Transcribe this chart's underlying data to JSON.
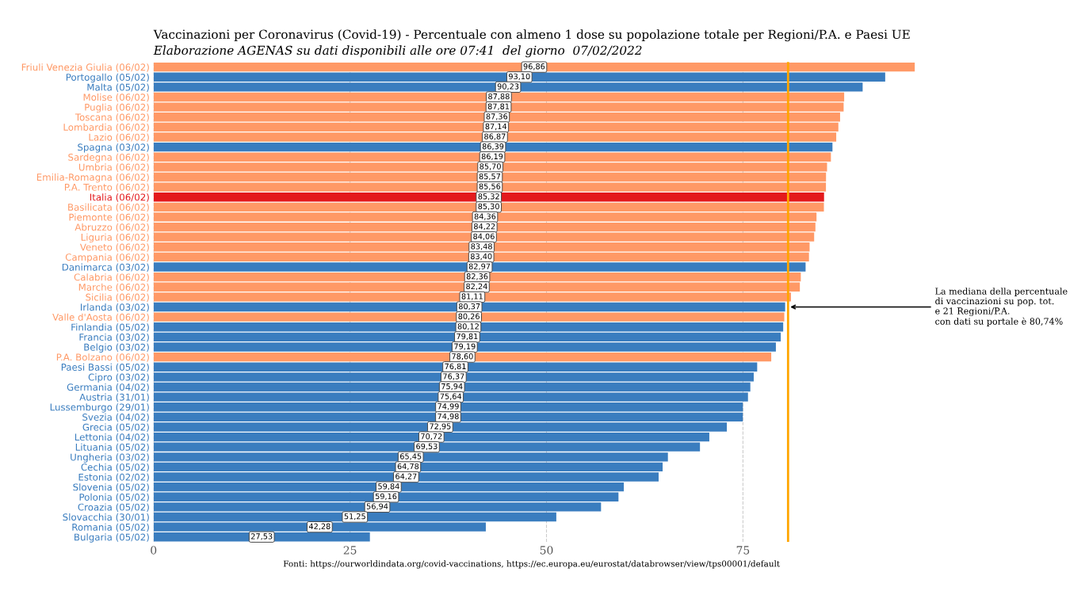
{
  "chart_data": {
    "type": "bar",
    "orientation": "horizontal",
    "title": "Vaccinazioni per Coronavirus (Covid-19) - Percentuale con almeno 1 dose su popolazione totale per Regioni/P.A. e Paesi UE",
    "subtitle": "Elaborazione AGENAS su dati disponibili alle ore 07:41  del giorno  07/02/2022",
    "categories": [
      "Friuli Venezia Giulia (06/02)",
      "Portogallo (05/02)",
      "Malta (05/02)",
      "Molise (06/02)",
      "Puglia (06/02)",
      "Toscana (06/02)",
      "Lombardia (06/02)",
      "Lazio (06/02)",
      "Spagna (03/02)",
      "Sardegna (06/02)",
      "Umbria (06/02)",
      "Emilia-Romagna (06/02)",
      "P.A. Trento (06/02)",
      "Italia (06/02)",
      "Basilicata (06/02)",
      "Piemonte (06/02)",
      "Abruzzo (06/02)",
      "Liguria (06/02)",
      "Veneto (06/02)",
      "Campania (06/02)",
      "Danimarca (03/02)",
      "Calabria (06/02)",
      "Marche (06/02)",
      "Sicilia (06/02)",
      "Irlanda (03/02)",
      "Valle d'Aosta (06/02)",
      "Finlandia (05/02)",
      "Francia (03/02)",
      "Belgio (03/02)",
      "P.A. Bolzano (06/02)",
      "Paesi Bassi (05/02)",
      "Cipro (03/02)",
      "Germania (04/02)",
      "Austria (31/01)",
      "Lussemburgo (29/01)",
      "Svezia (04/02)",
      "Grecia (05/02)",
      "Lettonia (04/02)",
      "Lituania (05/02)",
      "Ungheria (03/02)",
      "Cechia (05/02)",
      "Estonia (02/02)",
      "Slovenia (05/02)",
      "Polonia (05/02)",
      "Croazia (05/02)",
      "Slovacchia (30/01)",
      "Romania (05/02)",
      "Bulgaria (05/02)"
    ],
    "values": [
      96.86,
      93.1,
      90.23,
      87.88,
      87.81,
      87.36,
      87.14,
      86.87,
      86.39,
      86.19,
      85.7,
      85.57,
      85.56,
      85.32,
      85.3,
      84.36,
      84.22,
      84.06,
      83.48,
      83.4,
      82.97,
      82.36,
      82.24,
      81.11,
      80.37,
      80.26,
      80.12,
      79.81,
      79.19,
      78.6,
      76.81,
      76.37,
      75.94,
      75.64,
      74.99,
      74.98,
      72.95,
      70.72,
      69.53,
      65.45,
      64.78,
      64.27,
      59.84,
      59.16,
      56.94,
      51.25,
      42.28,
      27.53
    ],
    "value_labels": [
      "96,86",
      "93,10",
      "90,23",
      "87,88",
      "87,81",
      "87,36",
      "87,14",
      "86,87",
      "86,39",
      "86,19",
      "85,70",
      "85,57",
      "85,56",
      "85,32",
      "85,30",
      "84,36",
      "84,22",
      "84,06",
      "83,48",
      "83,40",
      "82,97",
      "82,36",
      "82,24",
      "81,11",
      "80,37",
      "80,26",
      "80,12",
      "79,81",
      "79,19",
      "78,60",
      "76,81",
      "76,37",
      "75,94",
      "75,64",
      "74,99",
      "74,98",
      "72,95",
      "70,72",
      "69,53",
      "65,45",
      "64,78",
      "64,27",
      "59,84",
      "59,16",
      "56,94",
      "51,25",
      "42,28",
      "27,53"
    ],
    "colors": [
      "#ff9966",
      "#3a7dbf",
      "#3a7dbf",
      "#ff9966",
      "#ff9966",
      "#ff9966",
      "#ff9966",
      "#ff9966",
      "#3a7dbf",
      "#ff9966",
      "#ff9966",
      "#ff9966",
      "#ff9966",
      "#e31a1c",
      "#ff9966",
      "#ff9966",
      "#ff9966",
      "#ff9966",
      "#ff9966",
      "#ff9966",
      "#3a7dbf",
      "#ff9966",
      "#ff9966",
      "#ff9966",
      "#3a7dbf",
      "#ff9966",
      "#3a7dbf",
      "#3a7dbf",
      "#3a7dbf",
      "#ff9966",
      "#3a7dbf",
      "#3a7dbf",
      "#3a7dbf",
      "#3a7dbf",
      "#3a7dbf",
      "#3a7dbf",
      "#3a7dbf",
      "#3a7dbf",
      "#3a7dbf",
      "#3a7dbf",
      "#3a7dbf",
      "#3a7dbf",
      "#3a7dbf",
      "#3a7dbf",
      "#3a7dbf",
      "#3a7dbf",
      "#3a7dbf",
      "#3a7dbf"
    ],
    "xlim": [
      0,
      97
    ],
    "xticks": [
      0,
      25,
      50,
      75
    ],
    "grid": "x",
    "ref_lines": [
      {
        "axis": "x",
        "value": 80.74,
        "color": "#ffa500",
        "label": "La mediana della percentuale\ndi vaccinazioni su pop. tot.\ne 21 Regioni/P.A.\ncon dati su portale è 80,74%"
      }
    ],
    "annotations": [
      "Fonti: https://ourworldindata.org/covid-vaccinations, https://ec.europa.eu/eurostat/databrowser/view/tps00001/default"
    ]
  }
}
